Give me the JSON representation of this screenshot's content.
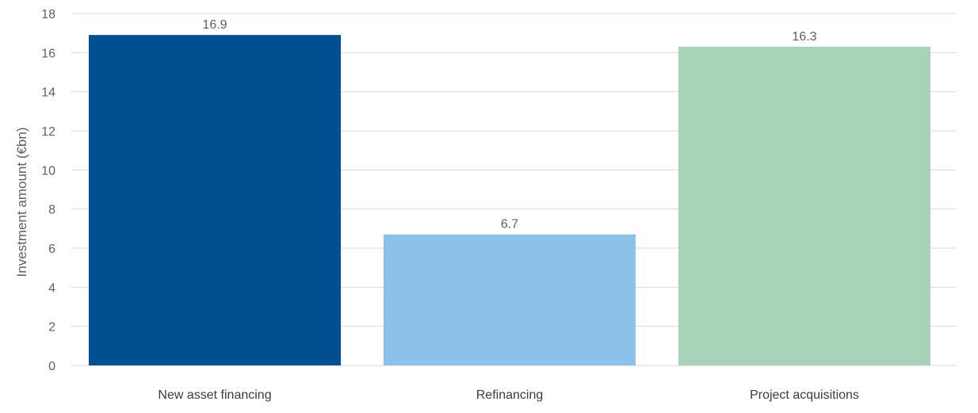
{
  "chart_data": {
    "type": "bar",
    "title": "",
    "xlabel": "",
    "ylabel": "Investment amount (€bn)",
    "categories": [
      "New asset financing",
      "Refinancing",
      "Project acquisitions"
    ],
    "values": [
      16.9,
      6.7,
      16.3
    ],
    "value_labels": [
      "16.9",
      "6.7",
      "16.3"
    ],
    "bar_colors": [
      "#005091",
      "#8cc1ea",
      "#a7d4b9"
    ],
    "ylim": [
      0,
      18
    ],
    "yticks": [
      0,
      2,
      4,
      6,
      8,
      10,
      12,
      14,
      16,
      18
    ],
    "grid": true,
    "legend": "none"
  }
}
